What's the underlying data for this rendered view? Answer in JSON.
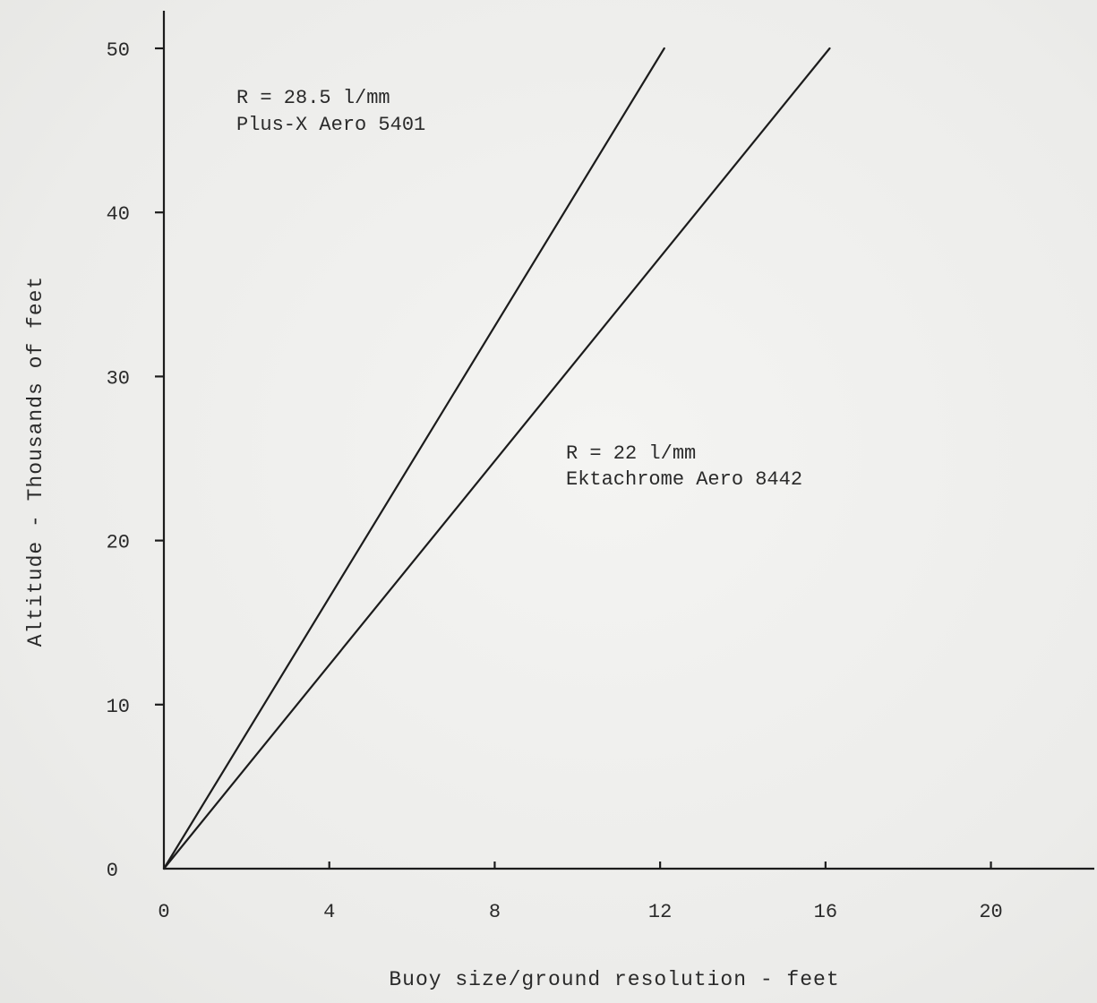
{
  "chart_data": {
    "type": "line",
    "title": "",
    "xlabel": "Buoy size/ground resolution - feet",
    "ylabel": "Altitude - Thousands of feet",
    "xlim": [
      0,
      22.5
    ],
    "ylim": [
      0,
      50
    ],
    "x_ticks": [
      0,
      4,
      8,
      12,
      16,
      20
    ],
    "y_ticks": [
      0,
      10,
      20,
      30,
      40,
      50
    ],
    "grid": false,
    "legend": "none",
    "series": [
      {
        "name_lines": [
          "R = 28.5 l/mm",
          "Plus-X Aero 5401"
        ],
        "x": [
          0,
          12.1
        ],
        "y": [
          0,
          50
        ]
      },
      {
        "name_lines": [
          "R = 22 l/mm",
          "Ektachrome Aero 8442"
        ],
        "x": [
          0,
          16.1
        ],
        "y": [
          0,
          50
        ]
      }
    ],
    "colors": {
      "line": "#1c1c1c",
      "axis": "#1c1c1c",
      "text": "#2a2a2a"
    }
  }
}
